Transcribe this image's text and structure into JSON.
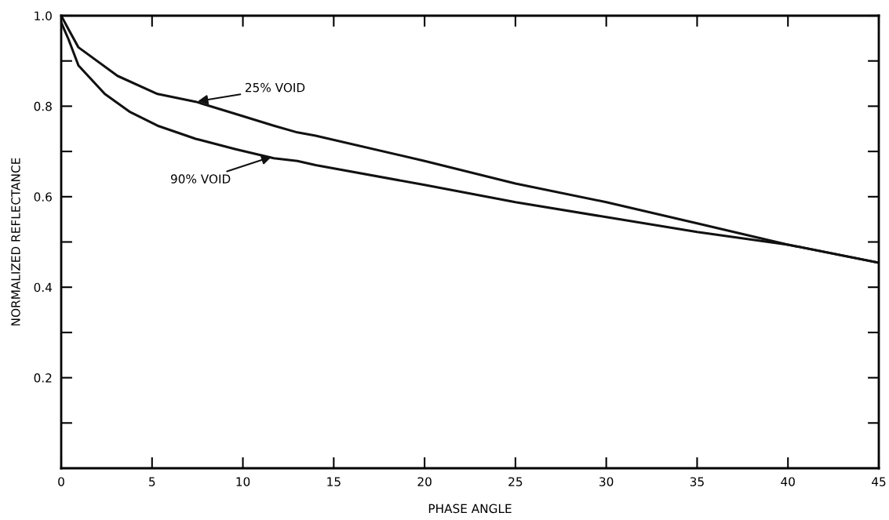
{
  "chart_data": {
    "type": "line",
    "xlabel": "PHASE ANGLE",
    "ylabel": "NORMALIZED REFLECTANCE",
    "series": [
      {
        "x": [
          0,
          0.4,
          0.95,
          3.1,
          5.3,
          7.4,
          9.6,
          11.7,
          13,
          14,
          20,
          25,
          30,
          35,
          40,
          45
        ],
        "values": [
          1.0,
          0.97,
          0.93,
          0.867,
          0.827,
          0.81,
          0.783,
          0.757,
          0.742,
          0.735,
          0.679,
          0.629,
          0.588,
          0.541,
          0.494,
          0.454
        ],
        "color": "#111111"
      },
      {
        "x": [
          0,
          0.4,
          0.95,
          2.4,
          3.8,
          5.3,
          7.4,
          9.6,
          11.7,
          13,
          14,
          20,
          25,
          30,
          35,
          40,
          45
        ],
        "values": [
          0.985,
          0.948,
          0.89,
          0.827,
          0.787,
          0.757,
          0.728,
          0.705,
          0.685,
          0.679,
          0.67,
          0.626,
          0.588,
          0.555,
          0.522,
          0.494,
          0.454
        ],
        "color": "#111111"
      }
    ],
    "annotations": [
      {
        "text": "25% VOID",
        "x": 7.4,
        "y": 0.81
      },
      {
        "text": "90% VOID",
        "x": 11.7,
        "y": 0.69
      }
    ],
    "xlim": [
      0,
      45
    ],
    "xticks": [
      0,
      5,
      10,
      15,
      20,
      25,
      30,
      35,
      40,
      45
    ],
    "ylim": [
      0,
      1.0
    ],
    "yticks": [
      {
        "value": 0.1,
        "label": null
      },
      0.2,
      {
        "value": 0.3,
        "label": null
      },
      0.4,
      {
        "value": 0.5,
        "label": null
      },
      0.6,
      {
        "value": 0.7,
        "label": null
      },
      0.8,
      {
        "value": 0.9,
        "label": null
      },
      {
        "value": 1.0,
        "label": "1.0"
      }
    ],
    "grid": false,
    "legend": false,
    "marker": "none",
    "line_style": "solid"
  }
}
